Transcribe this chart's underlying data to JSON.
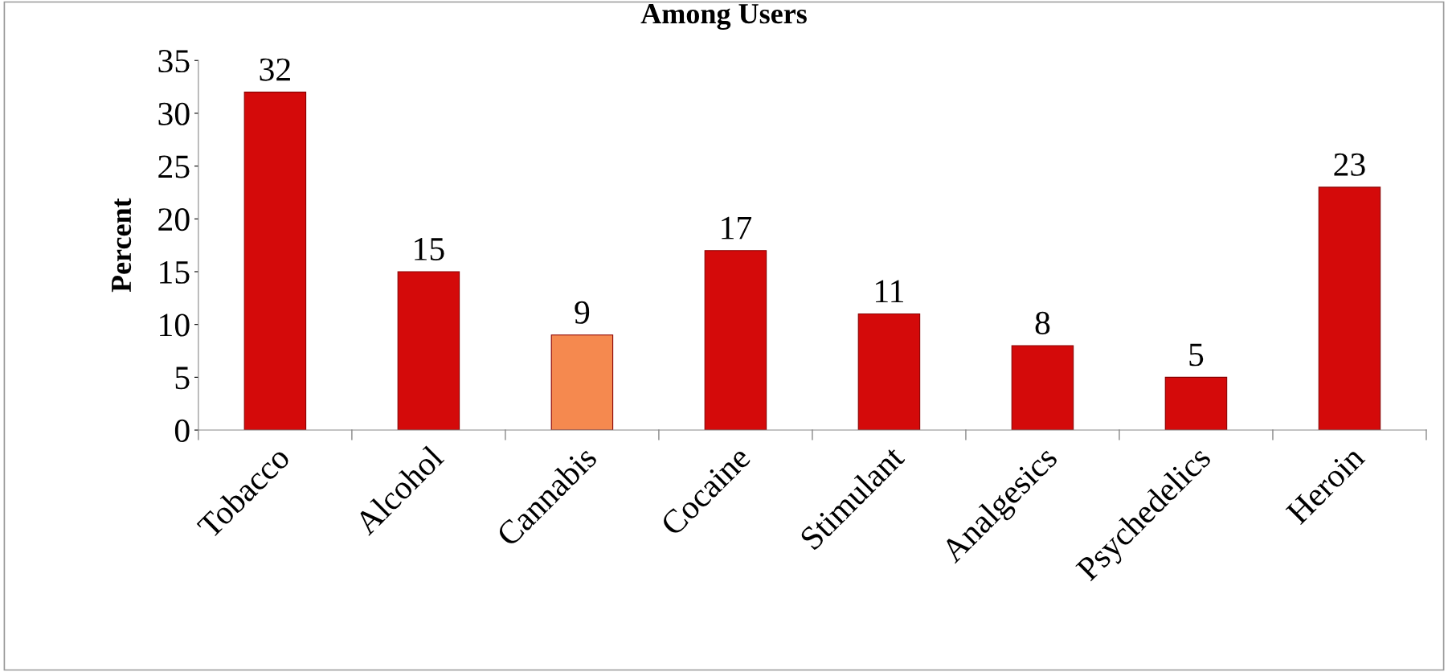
{
  "chart_data": {
    "type": "bar",
    "title": "Among Users",
    "ylabel": "Percent",
    "categories": [
      "Tobacco",
      "Alcohol",
      "Cannabis",
      "Cocaine",
      "Stimulant",
      "Analgesics",
      "Psychedelics",
      "Heroin"
    ],
    "values": [
      32,
      15,
      9,
      17,
      11,
      8,
      5,
      23
    ],
    "colors": [
      "#d40a0a",
      "#d40a0a",
      "#f5894f",
      "#d40a0a",
      "#d40a0a",
      "#d40a0a",
      "#d40a0a",
      "#d40a0a"
    ],
    "ylim": [
      0,
      35
    ],
    "yticks": [
      0,
      5,
      10,
      15,
      20,
      25,
      30,
      35
    ],
    "grid": false,
    "data_labels": true
  }
}
